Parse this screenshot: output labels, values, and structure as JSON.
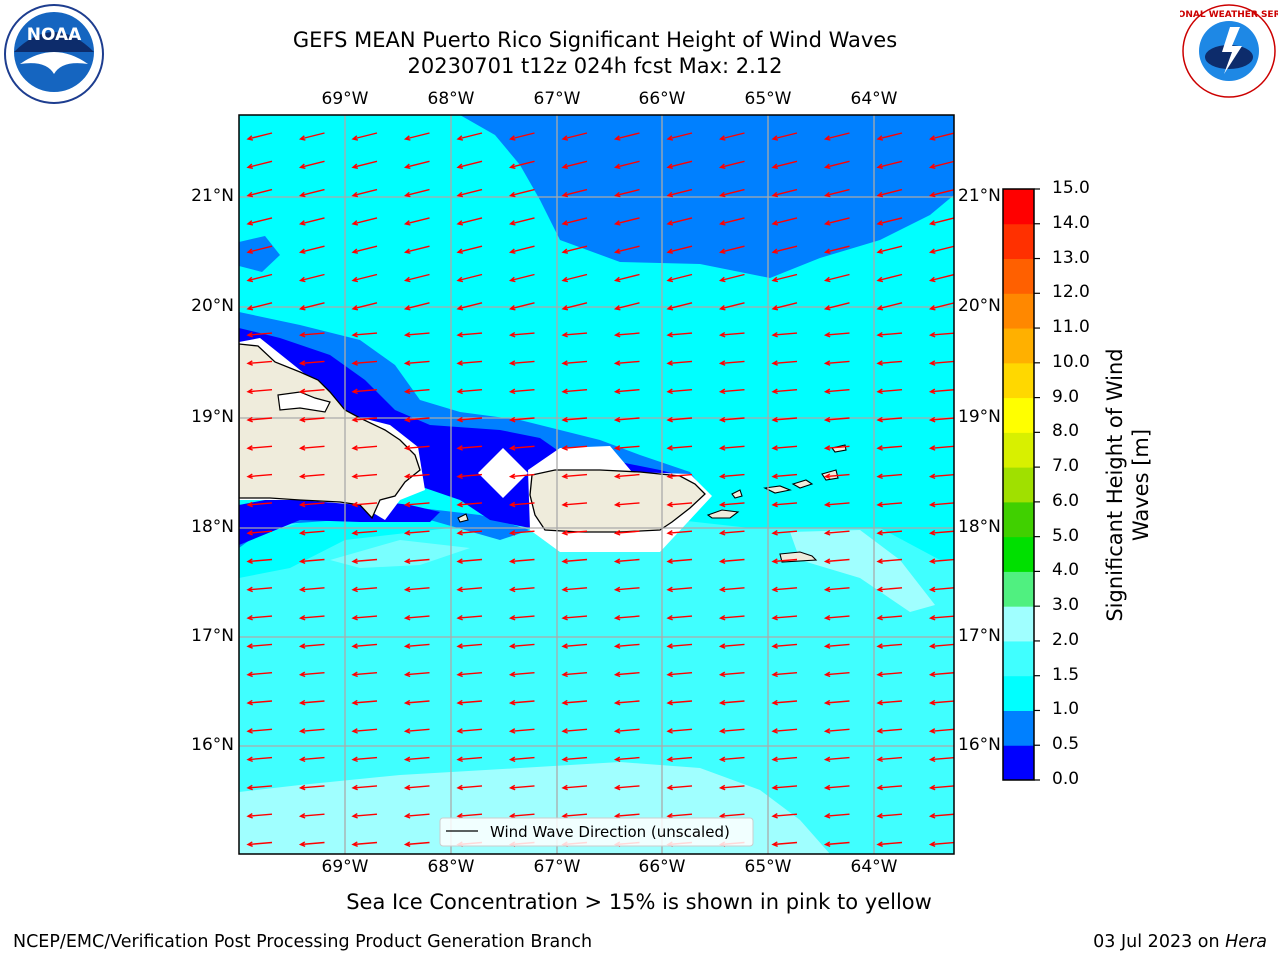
{
  "title": {
    "line1": "GEFS MEAN Puerto Rico Significant Height of Wind Waves",
    "line2": "20230701 t12z 024h fcst   Max: 2.12"
  },
  "axes": {
    "lon_labels": [
      "69°W",
      "68°W",
      "67°W",
      "66°W",
      "65°W",
      "64°W"
    ],
    "lat_labels": [
      "21°N",
      "20°N",
      "19°N",
      "18°N",
      "17°N",
      "16°N"
    ]
  },
  "legend": {
    "label": "Wind Wave Direction (unscaled)"
  },
  "colorbar": {
    "title": "Significant Height of Wind Waves [m]",
    "labels": [
      "0.0",
      "0.5",
      "1.0",
      "1.5",
      "2.0",
      "3.0",
      "4.0",
      "5.0",
      "6.0",
      "7.0",
      "8.0",
      "9.0",
      "10.0",
      "11.0",
      "12.0",
      "13.0",
      "14.0",
      "15.0"
    ],
    "colors": [
      "#0000ff",
      "#0080ff",
      "#00ffff",
      "#40ffff",
      "#a0ffff",
      "#50f080",
      "#00e000",
      "#40d000",
      "#a0e000",
      "#d8f000",
      "#ffff00",
      "#ffd800",
      "#ffb000",
      "#ff8800",
      "#ff6000",
      "#ff3000",
      "#ff0000"
    ]
  },
  "field_colors": {
    "dark_blue": "#0000ff",
    "medium_blue": "#0080ff",
    "cyan": "#00ffff",
    "light_cyan": "#40ffff",
    "pale_cyan": "#a0ffff",
    "land": "#efecdc",
    "arrow": "#ff0000"
  },
  "notes": {
    "sea_ice": "Sea Ice Concentration > 15% is shown in pink to yellow"
  },
  "footer": {
    "left": "NCEP/EMC/Verification Post Processing Product Generation Branch",
    "date": "03 Jul 2023 on ",
    "machine": "Hera"
  },
  "logos": {
    "noaa": {
      "text": "NOAA"
    },
    "nws": {
      "text": "NATIONAL WEATHER SERVICE"
    }
  }
}
